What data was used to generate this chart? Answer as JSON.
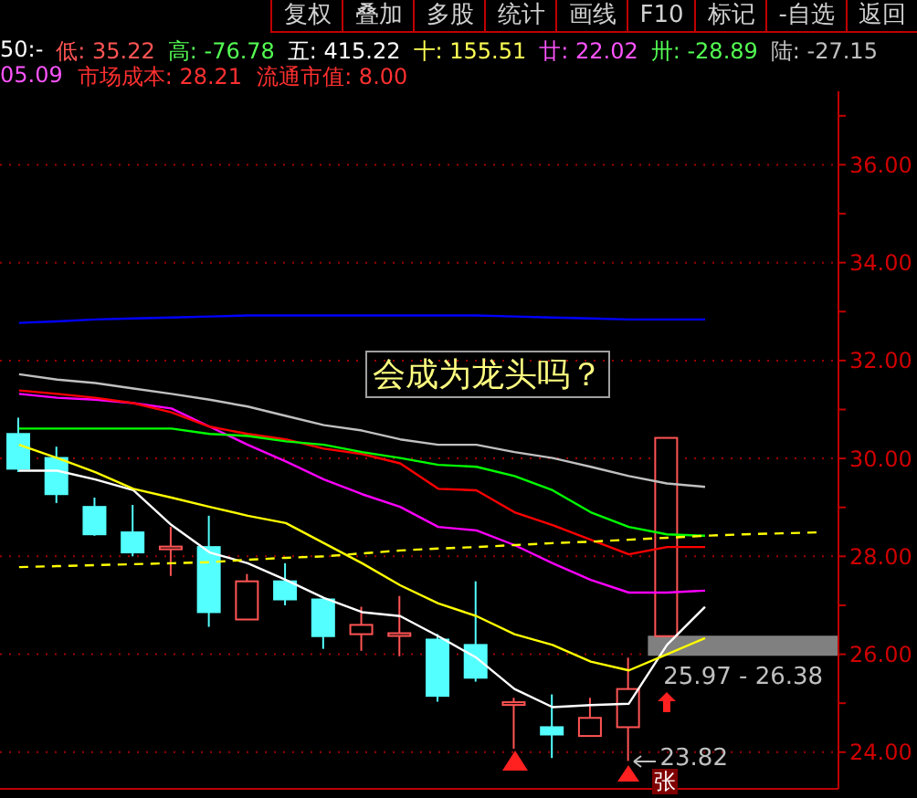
{
  "chart_data": {
    "type": "candlestick",
    "categories": [
      null,
      null,
      null,
      null,
      null,
      null,
      null,
      null,
      null,
      null,
      null,
      null,
      null,
      null,
      null,
      null,
      null,
      null,
      null,
      null,
      null,
      null
    ],
    "ohlc": [
      [
        30.5,
        30.83,
        29.72,
        29.79
      ],
      [
        30.01,
        30.24,
        29.09,
        29.27
      ],
      [
        29.01,
        29.2,
        28.42,
        28.45
      ],
      [
        28.49,
        29.05,
        28.0,
        28.08
      ],
      [
        28.16,
        28.6,
        27.6,
        28.2
      ],
      [
        28.19,
        28.83,
        26.56,
        26.86
      ],
      [
        26.71,
        27.64,
        26.71,
        27.49
      ],
      [
        27.49,
        27.86,
        27.0,
        27.12
      ],
      [
        27.12,
        27.12,
        26.11,
        26.37
      ],
      [
        26.41,
        26.97,
        26.07,
        26.6
      ],
      [
        26.41,
        27.19,
        25.96,
        26.43
      ],
      [
        26.3,
        26.41,
        25.03,
        25.15
      ],
      [
        26.19,
        27.49,
        25.44,
        25.52
      ],
      [
        25.0,
        25.11,
        24.07,
        25.02
      ],
      [
        24.51,
        25.18,
        23.88,
        24.36
      ],
      [
        24.33,
        25.11,
        24.33,
        24.7
      ],
      [
        24.51,
        25.93,
        23.82,
        25.29
      ],
      [
        26.37,
        30.42,
        26.37,
        30.42
      ],
      null,
      null,
      null,
      null
    ],
    "colors": [
      "#54ffff",
      "#54ffff",
      "#54ffff",
      "#54ffff",
      "#ff5454",
      "#54ffff",
      "#ff5454",
      "#54ffff",
      "#54ffff",
      "#ff5454",
      "#ff5454",
      "#54ffff",
      "#54ffff",
      "#ff5454",
      "#54ffff",
      "#ff5454",
      "#ff5454",
      "#ff5454",
      null,
      null,
      null,
      null
    ],
    "series": [
      {
        "type": "line",
        "color": "#ffffff",
        "values": [
          29.75,
          29.75,
          29.57,
          29.35,
          28.64,
          28.08,
          27.86,
          27.52,
          27.15,
          26.86,
          26.78,
          26.37,
          25.93,
          25.29,
          24.92,
          24.96,
          24.99,
          26.19,
          26.97,
          null,
          null,
          null
        ]
      },
      {
        "type": "line",
        "color": "#ffff00",
        "values": [
          30.28,
          30.01,
          29.72,
          29.38,
          29.2,
          29.01,
          28.83,
          28.68,
          28.27,
          27.86,
          27.41,
          27.04,
          26.78,
          26.41,
          26.19,
          25.85,
          25.67,
          26.0,
          26.33,
          null,
          null,
          null
        ]
      },
      {
        "type": "line",
        "color": "#ff00ff",
        "values": [
          31.32,
          31.24,
          31.2,
          31.13,
          31.02,
          30.65,
          30.28,
          29.94,
          29.57,
          29.27,
          29.01,
          28.6,
          28.53,
          28.23,
          27.86,
          27.52,
          27.26,
          27.26,
          27.3,
          null,
          null,
          null
        ]
      },
      {
        "type": "line",
        "color": "#ff0000",
        "values": [
          31.39,
          31.32,
          31.24,
          31.13,
          30.94,
          30.65,
          30.5,
          30.39,
          30.2,
          30.09,
          29.9,
          29.38,
          29.35,
          28.9,
          28.64,
          28.34,
          28.04,
          28.19,
          28.19,
          null,
          null,
          null
        ]
      },
      {
        "type": "line",
        "color": "#00ff00",
        "values": [
          30.61,
          30.61,
          30.61,
          30.61,
          30.61,
          30.5,
          30.46,
          30.35,
          30.28,
          30.13,
          30.01,
          29.87,
          29.83,
          29.64,
          29.35,
          28.9,
          28.6,
          28.45,
          28.42,
          null,
          null,
          null
        ]
      },
      {
        "type": "line",
        "color": "#c0c0c0",
        "values": [
          31.72,
          31.61,
          31.54,
          31.43,
          31.32,
          31.2,
          31.06,
          30.87,
          30.68,
          30.57,
          30.39,
          30.28,
          30.28,
          30.13,
          30.01,
          29.83,
          29.64,
          29.49,
          29.42,
          null,
          null,
          null
        ]
      },
      {
        "type": "line",
        "color": "#ffff00",
        "line_style": "dashed",
        "values": [
          27.78,
          27.8,
          27.82,
          27.84,
          27.86,
          27.88,
          27.93,
          27.97,
          28.0,
          28.06,
          28.12,
          28.16,
          28.19,
          28.23,
          28.27,
          28.3,
          28.34,
          28.38,
          28.42,
          28.45,
          28.47,
          28.49
        ]
      },
      {
        "type": "line",
        "color": "#0000ff",
        "values": [
          32.77,
          32.8,
          32.84,
          32.86,
          32.88,
          32.9,
          32.92,
          32.92,
          32.92,
          32.92,
          32.92,
          32.92,
          32.92,
          32.9,
          32.88,
          32.86,
          32.84,
          32.84,
          32.84,
          null,
          null,
          null
        ]
      }
    ],
    "ylim": [
      23.25,
      37.5
    ],
    "yticks": [
      {
        "value": 24,
        "label": "24.00"
      },
      {
        "value": 25,
        "label": null
      },
      {
        "value": 26,
        "label": "26.00"
      },
      {
        "value": 27,
        "label": null
      },
      {
        "value": 28,
        "label": "28.00"
      },
      {
        "value": 29,
        "label": null
      },
      {
        "value": 30,
        "label": "30.00"
      },
      {
        "value": 31,
        "label": null
      },
      {
        "value": 32,
        "label": "32.00"
      },
      {
        "value": 33,
        "label": null
      },
      {
        "value": 34,
        "label": "34.00"
      },
      {
        "value": 35,
        "label": null
      },
      {
        "value": 36,
        "label": "36.00"
      },
      {
        "value": 37,
        "label": null
      }
    ],
    "grid": "y",
    "tick_labels": "y",
    "marker": "none",
    "bands": [
      {
        "axis": "y",
        "from": 25.97,
        "to": 26.38,
        "label": "25.97 - 26.38",
        "color": "#808080"
      }
    ],
    "annotations": [
      "复权",
      "叠加",
      "多股",
      "统计",
      "画线",
      "F10",
      "标记",
      "-自选",
      "返回",
      "50:-",
      "低: 35.22",
      "高: -76.78",
      "五: 415.22",
      "十: 155.51",
      "廿: 22.02",
      "卅: -28.89",
      "陆: -27.15",
      "05.09",
      "市场成本: 28.21",
      "流通市值: 8.00",
      "会成为龙头吗？",
      "张",
      "23.82"
    ]
  }
}
